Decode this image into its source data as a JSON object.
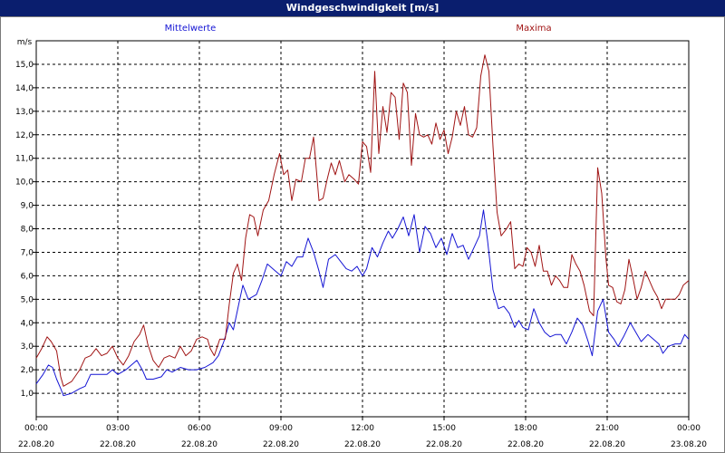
{
  "chart_data": {
    "type": "line",
    "title": "Windgeschwindigkeit [m/s]",
    "ylabel": "m/s",
    "ylim": [
      0,
      16
    ],
    "yticks": [
      "1,0",
      "2,0",
      "3,0",
      "4,0",
      "5,0",
      "6,0",
      "7,0",
      "8,0",
      "9,0",
      "10,0",
      "11,0",
      "12,0",
      "13,0",
      "14,0",
      "15,0"
    ],
    "xticks": [
      {
        "time": "00:00",
        "date": "22.08.20"
      },
      {
        "time": "03:00",
        "date": "22.08.20"
      },
      {
        "time": "06:00",
        "date": "22.08.20"
      },
      {
        "time": "09:00",
        "date": "22.08.20"
      },
      {
        "time": "12:00",
        "date": "22.08.20"
      },
      {
        "time": "15:00",
        "date": "22.08.20"
      },
      {
        "time": "18:00",
        "date": "22.08.20"
      },
      {
        "time": "21:00",
        "date": "22.08.20"
      },
      {
        "time": "00:00",
        "date": "23.08.20"
      }
    ],
    "xlim_hours": [
      0,
      24
    ],
    "grid": true,
    "series": [
      {
        "name": "Mittelwerte",
        "color": "#1515d4",
        "points": [
          [
            0.0,
            1.4
          ],
          [
            0.25,
            1.8
          ],
          [
            0.45,
            2.2
          ],
          [
            0.6,
            2.1
          ],
          [
            0.75,
            1.6
          ],
          [
            0.9,
            1.2
          ],
          [
            1.0,
            0.9
          ],
          [
            1.3,
            1.0
          ],
          [
            1.6,
            1.2
          ],
          [
            1.8,
            1.3
          ],
          [
            2.0,
            1.8
          ],
          [
            2.3,
            1.8
          ],
          [
            2.6,
            1.8
          ],
          [
            2.8,
            2.0
          ],
          [
            3.0,
            1.8
          ],
          [
            3.3,
            2.0
          ],
          [
            3.5,
            2.2
          ],
          [
            3.7,
            2.4
          ],
          [
            3.9,
            2.0
          ],
          [
            4.05,
            1.6
          ],
          [
            4.3,
            1.6
          ],
          [
            4.6,
            1.7
          ],
          [
            4.8,
            2.0
          ],
          [
            5.0,
            1.9
          ],
          [
            5.3,
            2.1
          ],
          [
            5.6,
            2.0
          ],
          [
            5.9,
            2.0
          ],
          [
            6.2,
            2.1
          ],
          [
            6.5,
            2.3
          ],
          [
            6.7,
            2.6
          ],
          [
            6.9,
            3.2
          ],
          [
            7.1,
            4.0
          ],
          [
            7.25,
            3.7
          ],
          [
            7.45,
            4.8
          ],
          [
            7.6,
            5.6
          ],
          [
            7.8,
            5.0
          ],
          [
            8.1,
            5.2
          ],
          [
            8.3,
            5.8
          ],
          [
            8.5,
            6.5
          ],
          [
            8.7,
            6.3
          ],
          [
            9.0,
            6.0
          ],
          [
            9.2,
            6.6
          ],
          [
            9.4,
            6.4
          ],
          [
            9.6,
            6.8
          ],
          [
            9.8,
            6.8
          ],
          [
            10.0,
            7.6
          ],
          [
            10.2,
            7.0
          ],
          [
            10.4,
            6.2
          ],
          [
            10.55,
            5.5
          ],
          [
            10.75,
            6.7
          ],
          [
            11.0,
            6.9
          ],
          [
            11.2,
            6.6
          ],
          [
            11.4,
            6.3
          ],
          [
            11.6,
            6.2
          ],
          [
            11.8,
            6.4
          ],
          [
            12.0,
            6.0
          ],
          [
            12.15,
            6.3
          ],
          [
            12.35,
            7.2
          ],
          [
            12.55,
            6.8
          ],
          [
            12.75,
            7.4
          ],
          [
            12.95,
            7.9
          ],
          [
            13.1,
            7.6
          ],
          [
            13.3,
            8.0
          ],
          [
            13.5,
            8.5
          ],
          [
            13.7,
            7.7
          ],
          [
            13.9,
            8.6
          ],
          [
            14.1,
            7.0
          ],
          [
            14.3,
            8.1
          ],
          [
            14.5,
            7.8
          ],
          [
            14.7,
            7.2
          ],
          [
            14.9,
            7.6
          ],
          [
            15.1,
            6.9
          ],
          [
            15.3,
            7.8
          ],
          [
            15.5,
            7.2
          ],
          [
            15.7,
            7.3
          ],
          [
            15.9,
            6.7
          ],
          [
            16.1,
            7.2
          ],
          [
            16.3,
            7.7
          ],
          [
            16.45,
            8.8
          ],
          [
            16.6,
            7.5
          ],
          [
            16.8,
            5.4
          ],
          [
            17.0,
            4.6
          ],
          [
            17.2,
            4.7
          ],
          [
            17.4,
            4.4
          ],
          [
            17.6,
            3.8
          ],
          [
            17.75,
            4.1
          ],
          [
            17.9,
            3.8
          ],
          [
            18.1,
            3.7
          ],
          [
            18.3,
            4.6
          ],
          [
            18.5,
            4.0
          ],
          [
            18.7,
            3.6
          ],
          [
            18.9,
            3.4
          ],
          [
            19.1,
            3.5
          ],
          [
            19.3,
            3.5
          ],
          [
            19.5,
            3.1
          ],
          [
            19.7,
            3.6
          ],
          [
            19.9,
            4.2
          ],
          [
            20.1,
            3.9
          ],
          [
            20.3,
            3.2
          ],
          [
            20.45,
            2.6
          ],
          [
            20.65,
            4.5
          ],
          [
            20.85,
            5.0
          ],
          [
            21.05,
            3.6
          ],
          [
            21.25,
            3.3
          ],
          [
            21.4,
            3.0
          ],
          [
            21.6,
            3.4
          ],
          [
            21.85,
            4.0
          ],
          [
            22.05,
            3.6
          ],
          [
            22.25,
            3.2
          ],
          [
            22.5,
            3.5
          ],
          [
            22.7,
            3.3
          ],
          [
            22.9,
            3.1
          ],
          [
            23.05,
            2.7
          ],
          [
            23.25,
            3.0
          ],
          [
            23.5,
            3.1
          ],
          [
            23.7,
            3.1
          ],
          [
            23.85,
            3.5
          ],
          [
            24.0,
            3.3
          ]
        ]
      },
      {
        "name": "Maxima",
        "color": "#a01414",
        "points": [
          [
            0.0,
            2.5
          ],
          [
            0.2,
            2.9
          ],
          [
            0.4,
            3.4
          ],
          [
            0.55,
            3.2
          ],
          [
            0.75,
            2.8
          ],
          [
            0.9,
            1.7
          ],
          [
            1.0,
            1.3
          ],
          [
            1.3,
            1.5
          ],
          [
            1.6,
            2.0
          ],
          [
            1.8,
            2.5
          ],
          [
            2.0,
            2.6
          ],
          [
            2.2,
            2.9
          ],
          [
            2.4,
            2.6
          ],
          [
            2.6,
            2.7
          ],
          [
            2.8,
            3.0
          ],
          [
            3.0,
            2.5
          ],
          [
            3.2,
            2.2
          ],
          [
            3.4,
            2.6
          ],
          [
            3.6,
            3.2
          ],
          [
            3.8,
            3.5
          ],
          [
            3.95,
            3.9
          ],
          [
            4.1,
            3.1
          ],
          [
            4.3,
            2.4
          ],
          [
            4.5,
            2.1
          ],
          [
            4.7,
            2.5
          ],
          [
            4.9,
            2.6
          ],
          [
            5.1,
            2.5
          ],
          [
            5.3,
            3.0
          ],
          [
            5.5,
            2.6
          ],
          [
            5.7,
            2.8
          ],
          [
            5.9,
            3.3
          ],
          [
            6.1,
            3.4
          ],
          [
            6.3,
            3.3
          ],
          [
            6.4,
            2.9
          ],
          [
            6.55,
            2.6
          ],
          [
            6.75,
            3.3
          ],
          [
            6.95,
            3.3
          ],
          [
            7.1,
            4.8
          ],
          [
            7.25,
            6.1
          ],
          [
            7.4,
            6.5
          ],
          [
            7.55,
            5.8
          ],
          [
            7.7,
            7.6
          ],
          [
            7.85,
            8.6
          ],
          [
            8.0,
            8.5
          ],
          [
            8.15,
            7.7
          ],
          [
            8.35,
            8.8
          ],
          [
            8.55,
            9.2
          ],
          [
            8.75,
            10.3
          ],
          [
            8.95,
            11.2
          ],
          [
            9.1,
            10.3
          ],
          [
            9.25,
            10.5
          ],
          [
            9.4,
            9.2
          ],
          [
            9.55,
            10.1
          ],
          [
            9.75,
            10.0
          ],
          [
            9.9,
            11.0
          ],
          [
            10.05,
            11.0
          ],
          [
            10.2,
            11.9
          ],
          [
            10.4,
            9.2
          ],
          [
            10.55,
            9.3
          ],
          [
            10.7,
            10.1
          ],
          [
            10.85,
            10.8
          ],
          [
            11.0,
            10.3
          ],
          [
            11.15,
            10.9
          ],
          [
            11.35,
            10.0
          ],
          [
            11.5,
            10.3
          ],
          [
            11.7,
            10.1
          ],
          [
            11.85,
            9.9
          ],
          [
            12.0,
            11.7
          ],
          [
            12.15,
            11.5
          ],
          [
            12.3,
            10.4
          ],
          [
            12.45,
            14.7
          ],
          [
            12.6,
            11.2
          ],
          [
            12.75,
            13.2
          ],
          [
            12.9,
            12.1
          ],
          [
            13.05,
            13.8
          ],
          [
            13.2,
            13.6
          ],
          [
            13.35,
            11.8
          ],
          [
            13.5,
            14.2
          ],
          [
            13.65,
            13.8
          ],
          [
            13.8,
            10.7
          ],
          [
            13.95,
            12.9
          ],
          [
            14.1,
            12.0
          ],
          [
            14.25,
            11.9
          ],
          [
            14.4,
            12.0
          ],
          [
            14.55,
            11.6
          ],
          [
            14.7,
            12.5
          ],
          [
            14.85,
            11.8
          ],
          [
            15.0,
            12.2
          ],
          [
            15.15,
            11.2
          ],
          [
            15.3,
            11.9
          ],
          [
            15.45,
            13.0
          ],
          [
            15.6,
            12.4
          ],
          [
            15.75,
            13.2
          ],
          [
            15.9,
            12.0
          ],
          [
            16.05,
            11.9
          ],
          [
            16.2,
            12.3
          ],
          [
            16.35,
            14.5
          ],
          [
            16.5,
            15.4
          ],
          [
            16.65,
            14.7
          ],
          [
            16.8,
            11.5
          ],
          [
            16.95,
            8.7
          ],
          [
            17.1,
            7.7
          ],
          [
            17.3,
            8.0
          ],
          [
            17.45,
            8.3
          ],
          [
            17.6,
            6.3
          ],
          [
            17.75,
            6.5
          ],
          [
            17.9,
            6.4
          ],
          [
            18.05,
            7.2
          ],
          [
            18.2,
            7.0
          ],
          [
            18.35,
            6.4
          ],
          [
            18.5,
            7.3
          ],
          [
            18.65,
            6.2
          ],
          [
            18.8,
            6.2
          ],
          [
            18.95,
            5.6
          ],
          [
            19.1,
            6.0
          ],
          [
            19.25,
            5.8
          ],
          [
            19.4,
            5.5
          ],
          [
            19.55,
            5.5
          ],
          [
            19.7,
            6.9
          ],
          [
            19.85,
            6.5
          ],
          [
            20.0,
            6.2
          ],
          [
            20.15,
            5.6
          ],
          [
            20.35,
            4.5
          ],
          [
            20.5,
            4.3
          ],
          [
            20.65,
            10.6
          ],
          [
            20.8,
            9.5
          ],
          [
            20.95,
            6.8
          ],
          [
            21.05,
            5.6
          ],
          [
            21.2,
            5.5
          ],
          [
            21.35,
            4.9
          ],
          [
            21.5,
            4.8
          ],
          [
            21.65,
            5.4
          ],
          [
            21.8,
            6.7
          ],
          [
            21.95,
            5.9
          ],
          [
            22.1,
            5.0
          ],
          [
            22.25,
            5.5
          ],
          [
            22.4,
            6.2
          ],
          [
            22.55,
            5.8
          ],
          [
            22.7,
            5.4
          ],
          [
            22.85,
            5.1
          ],
          [
            23.0,
            4.6
          ],
          [
            23.15,
            5.0
          ],
          [
            23.3,
            5.0
          ],
          [
            23.5,
            5.0
          ],
          [
            23.65,
            5.2
          ],
          [
            23.8,
            5.6
          ],
          [
            24.0,
            5.8
          ]
        ]
      }
    ],
    "legend_placement": "top"
  }
}
